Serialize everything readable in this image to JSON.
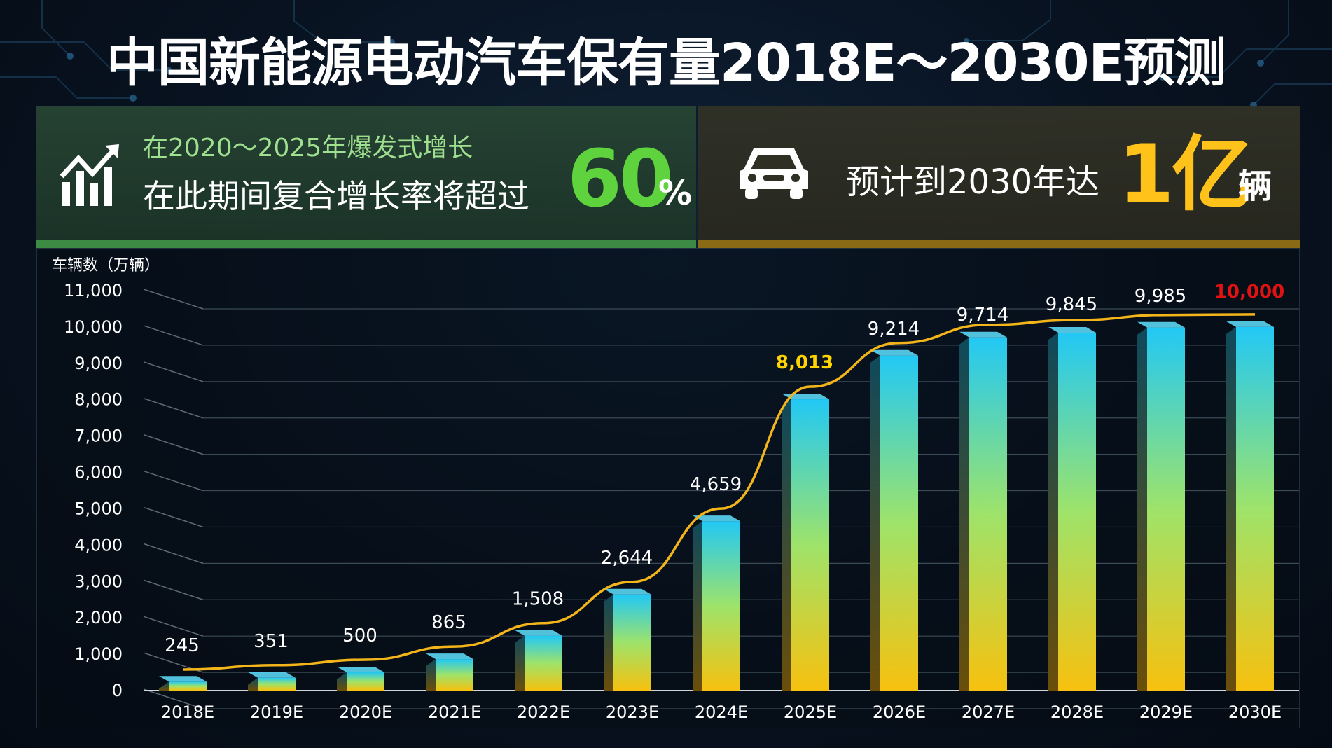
{
  "title": "中国新能源电动汽车保有量2018E～2030E预测",
  "left_banner": {
    "icon": "growth-chart-icon",
    "subtitle": "在2020～2025年爆发式增长",
    "headline": "在此期间复合增长率将超过",
    "value": "60",
    "unit": "%"
  },
  "right_banner": {
    "icon": "car-icon",
    "headline": "预计到2030年达",
    "value": "1亿",
    "unit": "辆"
  },
  "colors": {
    "green_accent": "#5fd33e",
    "yellow_accent": "#ffc21a",
    "bar_top": "#22c8f5",
    "bar_bottom": "#f7c10f",
    "curve": "#f3b51a",
    "highlight_label_2025": "#ffd400",
    "highlight_label_2030": "#e31212"
  },
  "chart_data": {
    "type": "bar",
    "ylabel": "车辆数（万辆）",
    "ylim": [
      0,
      11000
    ],
    "yticks": [
      "0",
      "1,000",
      "2,000",
      "3,000",
      "4,000",
      "5,000",
      "6,000",
      "7,000",
      "8,000",
      "9,000",
      "10,000",
      "11,000"
    ],
    "categories": [
      "2018E",
      "2019E",
      "2020E",
      "2021E",
      "2022E",
      "2023E",
      "2024E",
      "2025E",
      "2026E",
      "2027E",
      "2028E",
      "2029E",
      "2030E"
    ],
    "values": [
      245,
      351,
      500,
      865,
      1508,
      2644,
      4659,
      8013,
      9214,
      9714,
      9845,
      9985,
      10000
    ],
    "value_labels": [
      "245",
      "351",
      "500",
      "865",
      "1,508",
      "2,644",
      "4,659",
      "8,013",
      "9,214",
      "9,714",
      "9,845",
      "9,985",
      "10,000"
    ],
    "trend_line": "smooth S-curve through the values",
    "grid": true,
    "legend": "none"
  }
}
